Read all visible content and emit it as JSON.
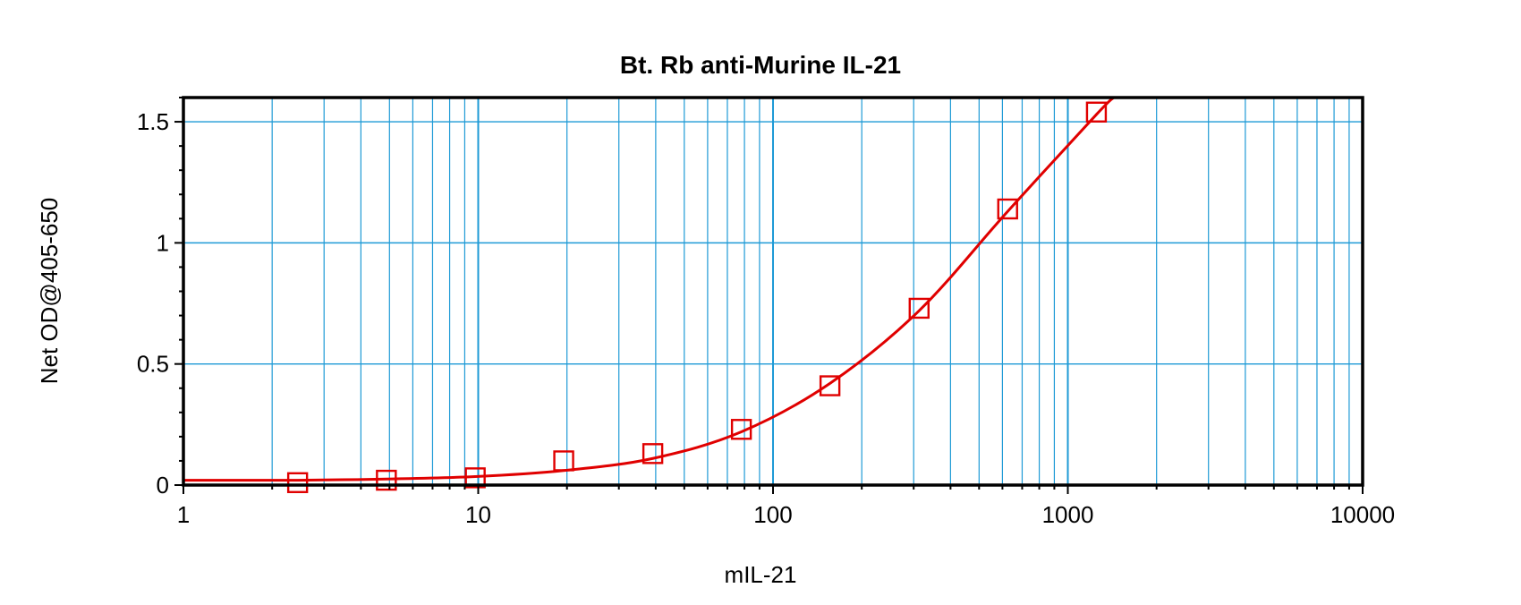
{
  "chart_data": {
    "type": "scatter",
    "title": "Bt. Rb anti-Murine IL-21",
    "xlabel": "mIL-21",
    "ylabel": "Net OD@405-650",
    "xscale": "log",
    "xlim": [
      1,
      10000
    ],
    "ylim": [
      0,
      1.6
    ],
    "xticks": [
      1,
      10,
      100,
      1000,
      10000
    ],
    "xtick_labels": [
      "1",
      "10",
      "100",
      "1000",
      "10000"
    ],
    "yticks": [
      0,
      0.5,
      1,
      1.5
    ],
    "ytick_labels": [
      "0",
      "0.5",
      "1",
      "1.5"
    ],
    "grid": true,
    "legend": "none",
    "series": [
      {
        "marker": "open-square",
        "color": "#e00000",
        "x": [
          2.44,
          4.88,
          9.77,
          19.5,
          39.1,
          78.1,
          156,
          313,
          625,
          1250
        ],
        "y": [
          0.01,
          0.02,
          0.03,
          0.1,
          0.13,
          0.23,
          0.41,
          0.73,
          1.14,
          1.54
        ]
      }
    ],
    "fit_curve": {
      "color": "#e00000",
      "x": [
        1,
        2.44,
        4.88,
        9.77,
        19.5,
        39.1,
        78.1,
        156,
        313,
        625,
        1250,
        1430
      ],
      "y": [
        0.02,
        0.02,
        0.025,
        0.035,
        0.06,
        0.11,
        0.22,
        0.42,
        0.72,
        1.13,
        1.53,
        1.6
      ]
    },
    "colors": {
      "grid": "#1e9ad6",
      "axis": "#000000",
      "series": "#e00000"
    }
  }
}
